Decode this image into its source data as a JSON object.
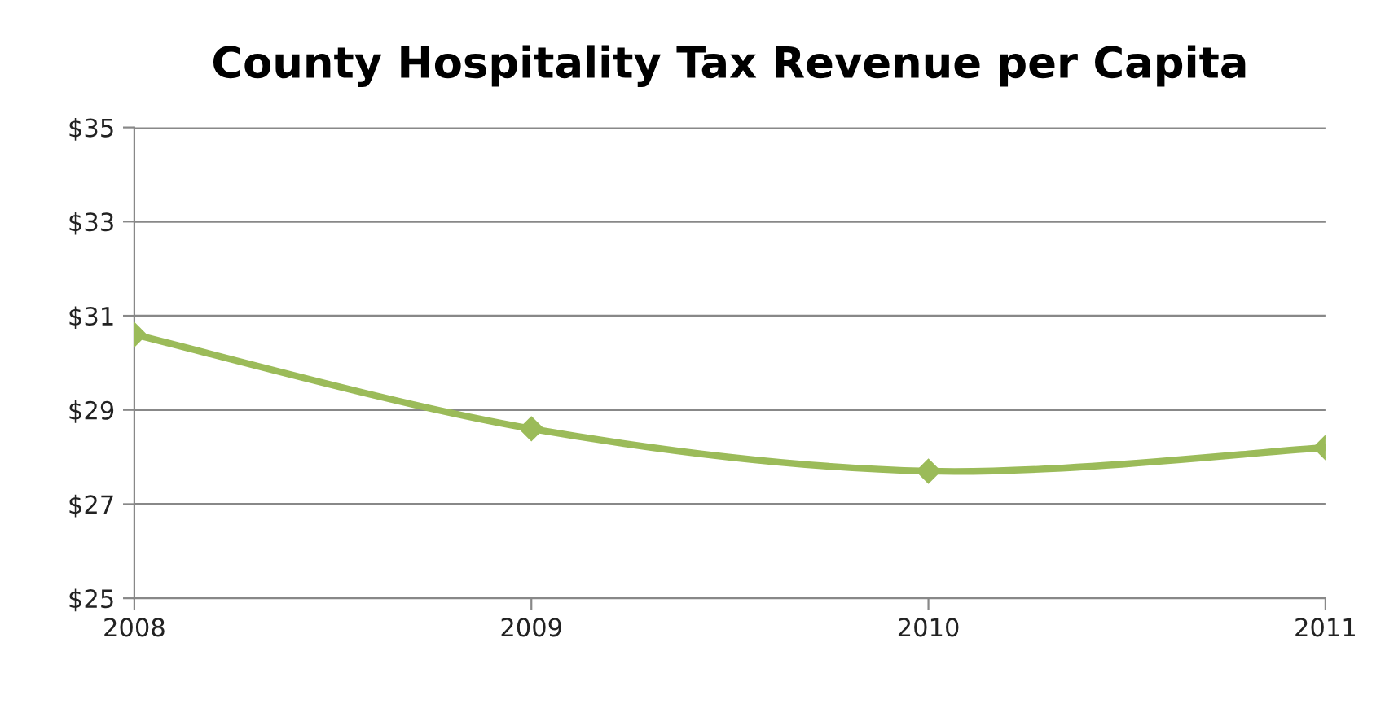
{
  "chart_data": {
    "type": "line",
    "title": "County Hospitality Tax Revenue per Capita",
    "categories": [
      "2008",
      "2009",
      "2010",
      "2011"
    ],
    "series": [
      {
        "color": "#9bbb59",
        "values": [
          30.6,
          28.6,
          27.7,
          28.2
        ]
      }
    ],
    "ylim": [
      25,
      35
    ],
    "yticks": [
      {
        "value": 25,
        "label": "$25"
      },
      {
        "value": 27,
        "label": "$27"
      },
      {
        "value": 29,
        "label": "$29"
      },
      {
        "value": 31,
        "label": "$31"
      },
      {
        "value": 33,
        "label": "$33"
      },
      {
        "value": 35,
        "label": "$35"
      }
    ],
    "grid": "y",
    "marker": "diamond",
    "line_style": "solid",
    "legend": false
  }
}
